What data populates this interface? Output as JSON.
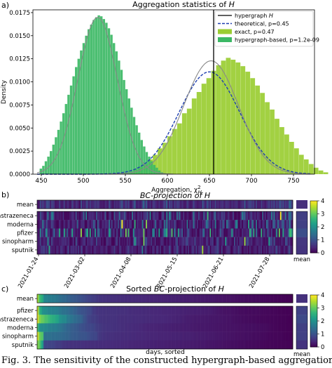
{
  "panel_labels": [
    "a)",
    "b)",
    "c)"
  ],
  "caption": "Fig. 3. The sensitivity of the constructed hypergraph-based aggregation",
  "chart_data": [
    {
      "type": "bar",
      "title": "Aggregation statistics of H",
      "xlabel": "Aggregation, χ²_H",
      "ylabel": "Density",
      "xlim": [
        440,
        775
      ],
      "ylim": [
        0,
        0.0178
      ],
      "xticks": [
        450,
        500,
        550,
        600,
        650,
        700,
        750
      ],
      "yticks": [
        0.0,
        0.0025,
        0.005,
        0.0075,
        0.01,
        0.0125,
        0.015,
        0.0175
      ],
      "ytick_labels": [
        "0.0000",
        "0.0025",
        "0.0050",
        "0.0075",
        "0.0100",
        "0.0125",
        "0.0150",
        "0.0175"
      ],
      "legend_placement": "upper-right",
      "series": [
        {
          "name": "hypergraph H",
          "kind": "vline",
          "x": 655,
          "color": "#000000"
        },
        {
          "name": "theoretical, p=0.45",
          "kind": "line",
          "style": "dashed",
          "color": "#1f3fb0",
          "mean": 650,
          "sd": 36
        },
        {
          "name": "exact, p=0.47",
          "kind": "hist",
          "color": "#9acd32",
          "bin_start": 542,
          "bin_width": 5.8,
          "values": [
            0.0001,
            0.0002,
            0.0003,
            0.0005,
            0.0008,
            0.0011,
            0.0016,
            0.0021,
            0.0028,
            0.0034,
            0.0041,
            0.0049,
            0.0055,
            0.0066,
            0.0071,
            0.0082,
            0.0089,
            0.0098,
            0.0104,
            0.0112,
            0.0118,
            0.0123,
            0.0126,
            0.0124,
            0.0121,
            0.0117,
            0.0111,
            0.0104,
            0.0096,
            0.0088,
            0.0078,
            0.007,
            0.006,
            0.0051,
            0.0043,
            0.0035,
            0.0028,
            0.0021,
            0.0016,
            0.0011,
            0.0007,
            0.0004,
            0.0002
          ]
        },
        {
          "name": "hypergraph-based, p=1.2e-09",
          "kind": "hist",
          "color": "#3cb865",
          "bin_start": 448,
          "bin_width": 3.0,
          "values": [
            0.0006,
            0.0009,
            0.0014,
            0.0019,
            0.0025,
            0.0032,
            0.004,
            0.0048,
            0.0057,
            0.0066,
            0.0076,
            0.0086,
            0.0096,
            0.0106,
            0.0116,
            0.0125,
            0.0134,
            0.0142,
            0.015,
            0.0157,
            0.0162,
            0.0167,
            0.017,
            0.0172,
            0.0171,
            0.0168,
            0.0164,
            0.0158,
            0.0151,
            0.0142,
            0.0133,
            0.0123,
            0.0113,
            0.0102,
            0.0092,
            0.0082,
            0.0072,
            0.0062,
            0.0053,
            0.0045,
            0.0037,
            0.003,
            0.0024,
            0.0019,
            0.0014,
            0.001,
            0.0007,
            0.0004,
            0.0002,
            0.0001
          ]
        },
        {
          "name": "fit-exact",
          "kind": "line",
          "color": "#888888",
          "mean": 652,
          "sd": 32.5
        },
        {
          "name": "fit-hypergraph-based",
          "kind": "line",
          "color": "#888888",
          "mean": 517,
          "sd": 23.5
        }
      ]
    },
    {
      "type": "heatmap",
      "title": "BC-projection of H",
      "rows": [
        "mean",
        "astrazeneca",
        "moderna",
        "pfizer",
        "sinopharm",
        "sputnik"
      ],
      "xtick_labels": [
        "2021-01-24",
        "2021-03-02",
        "2021-04-08",
        "2021-05-15",
        "2021-06-21",
        "2021-07-28"
      ],
      "colorbar_ticks": [
        0,
        1,
        2,
        3,
        4
      ],
      "colorbar_label": "mean",
      "vmin": 0,
      "vmax": 4,
      "columns": 200
    },
    {
      "type": "heatmap",
      "title": "Sorted BC-projection of H",
      "rows": [
        "mean",
        "pfizer",
        "astrazeneca",
        "moderna",
        "sinopharm",
        "sputnik"
      ],
      "xlabel": "days, sorted",
      "colorbar_ticks": [
        0,
        1,
        2,
        3,
        4
      ],
      "colorbar_label": "mean",
      "vmin": 0,
      "vmax": 4,
      "columns": 200
    }
  ]
}
